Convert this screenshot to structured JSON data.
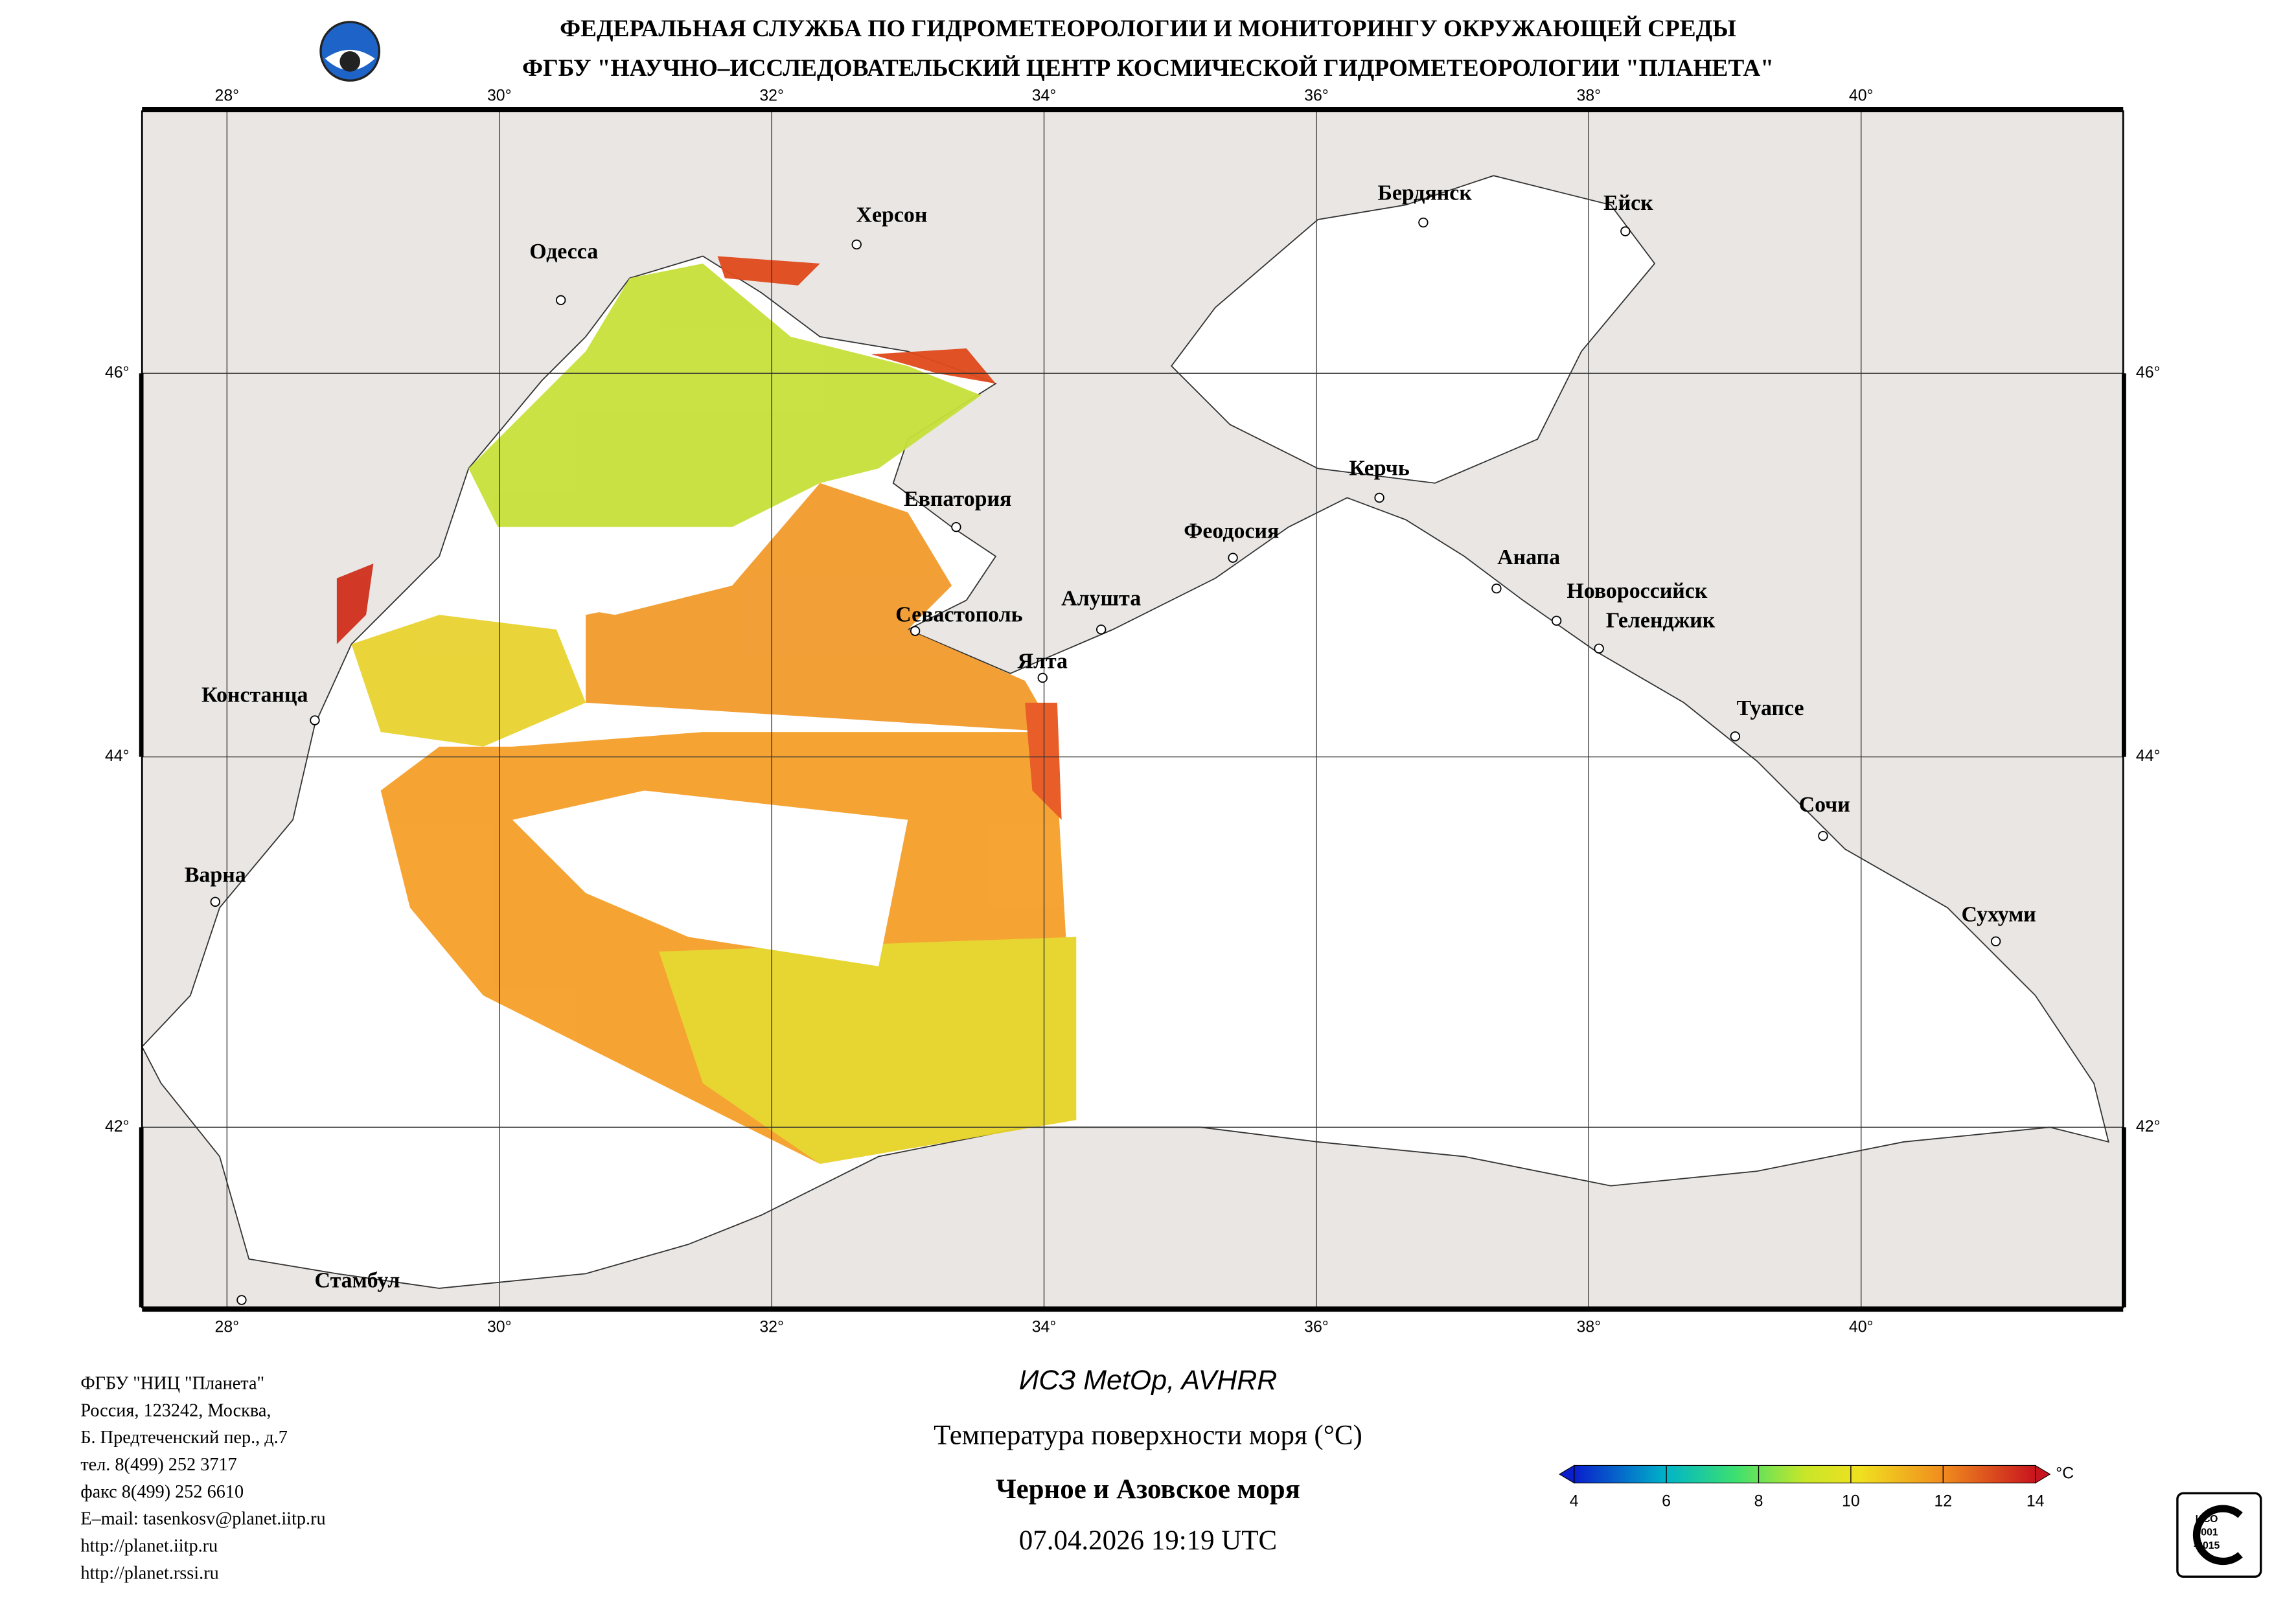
{
  "header": {
    "line1": "ФЕДЕРАЛЬНАЯ СЛУЖБА ПО ГИДРОМЕТЕОРОЛОГИИ И МОНИТОРИНГУ ОКРУЖАЮЩЕЙ СРЕДЫ",
    "line2": "ФГБУ \"НАУЧНО–ИССЛЕДОВАТЕЛЬСКИЙ ЦЕНТР КОСМИЧЕСКОЙ ГИДРОМЕТЕОРОЛОГИИ \"ПЛАНЕТА\""
  },
  "map": {
    "lon_ticks": [
      "28°",
      "30°",
      "32°",
      "34°",
      "36°",
      "38°",
      "40°"
    ],
    "lat_ticks": [
      "46°",
      "44°",
      "42°"
    ],
    "cities": [
      "Одесса",
      "Херсон",
      "Бердянск",
      "Ейск",
      "Евпатория",
      "Феодосия",
      "Керчь",
      "Анапа",
      "Новороссийск",
      "Геленджик",
      "Туапсе",
      "Сочи",
      "Сухуми",
      "Севастополь",
      "Алушта",
      "Ялта",
      "Констанца",
      "Варна",
      "Стамбул"
    ]
  },
  "footer": {
    "org_lines": [
      "ФГБУ \"НИЦ \"Планета\"",
      "Россия, 123242, Москва,",
      "Б. Предтеченский пер., д.7",
      "тел. 8(499) 252 3717",
      "факс 8(499) 252 6610",
      "E–mail: tasenkosv@planet.iitp.ru",
      "http://planet.iitp.ru",
      "http://planet.rssi.ru"
    ],
    "satellite": "ИСЗ MetOp, AVHRR",
    "product": "Температура поверхности моря (°C)",
    "region": "Черное и Азовское моря",
    "datetime": "07.04.2026 19:19 UTC"
  },
  "colorbar": {
    "ticks": [
      4,
      6,
      8,
      10,
      12,
      14
    ],
    "unit": "°C"
  },
  "badge": {
    "lines": [
      "ИСО",
      "9001",
      "-2015"
    ]
  }
}
